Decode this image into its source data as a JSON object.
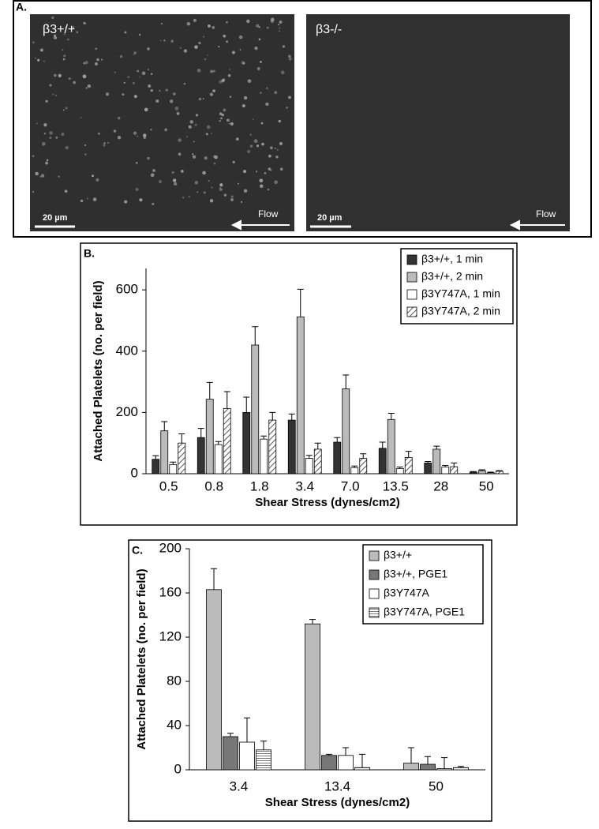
{
  "panel_a": {
    "label": "A.",
    "left_title": "β3+/+",
    "right_title": "β3-/-",
    "left_scale": "20 µm",
    "right_scale": "20 µm",
    "left_flow": "Flow",
    "right_flow": "Flow"
  },
  "chart_data": [
    {
      "type": "bar",
      "panel_label": "B.",
      "y_label": "Attached  Platelets (no. per field)",
      "x_label": "Shear Stress (dynes/cm2)",
      "categories": [
        "0.5",
        "0.8",
        "1.8",
        "3.4",
        "7.0",
        "13.5",
        "28",
        "50"
      ],
      "ylim": [
        0,
        670
      ],
      "yticks": [
        0,
        200,
        400,
        600
      ],
      "series": [
        {
          "name": "β3+/+, 1 min",
          "color": "#333333",
          "values": [
            47,
            118,
            200,
            175,
            103,
            83,
            35,
            5
          ],
          "errors": [
            12,
            30,
            50,
            20,
            15,
            20,
            5,
            2
          ]
        },
        {
          "name": "β3+/+, 2 min",
          "color": "#bbbbbb",
          "values": [
            140,
            243,
            420,
            512,
            277,
            177,
            80,
            10
          ],
          "errors": [
            30,
            55,
            60,
            90,
            45,
            20,
            10,
            3
          ]
        },
        {
          "name": "β3Y747A, 1 min",
          "color": "#ffffff",
          "values": [
            30,
            95,
            113,
            50,
            20,
            17,
            22,
            3
          ],
          "errors": [
            8,
            10,
            10,
            10,
            5,
            5,
            5,
            2
          ]
        },
        {
          "name": "β3Y747A, 2 min",
          "color": "#888888",
          "values": [
            100,
            213,
            175,
            80,
            50,
            53,
            23,
            8
          ],
          "errors": [
            30,
            55,
            25,
            20,
            15,
            20,
            12,
            2
          ]
        }
      ]
    },
    {
      "type": "bar",
      "panel_label": "C.",
      "y_label": "Attached  Platelets (no. per field)",
      "x_label": "Shear Stress (dynes/cm2)",
      "categories": [
        "3.4",
        "13.4",
        "50"
      ],
      "ylim": [
        0,
        200
      ],
      "yticks": [
        0,
        40,
        80,
        120,
        160,
        200
      ],
      "series": [
        {
          "name": "β3+/+",
          "color": "#bbbbbb",
          "values": [
            163,
            132,
            6
          ],
          "errors": [
            19,
            4,
            14
          ]
        },
        {
          "name": "β3+/+, PGE1",
          "color": "#777777",
          "values": [
            30,
            13,
            5
          ],
          "errors": [
            3,
            1,
            7
          ]
        },
        {
          "name": "β3Y747A",
          "color": "#ffffff",
          "values": [
            25,
            13,
            1
          ],
          "errors": [
            22,
            7,
            10
          ]
        },
        {
          "name": "β3Y747A, PGE1",
          "color": "#aaaaaa",
          "values": [
            18,
            2,
            2
          ],
          "errors": [
            8,
            12,
            1
          ]
        }
      ]
    }
  ]
}
